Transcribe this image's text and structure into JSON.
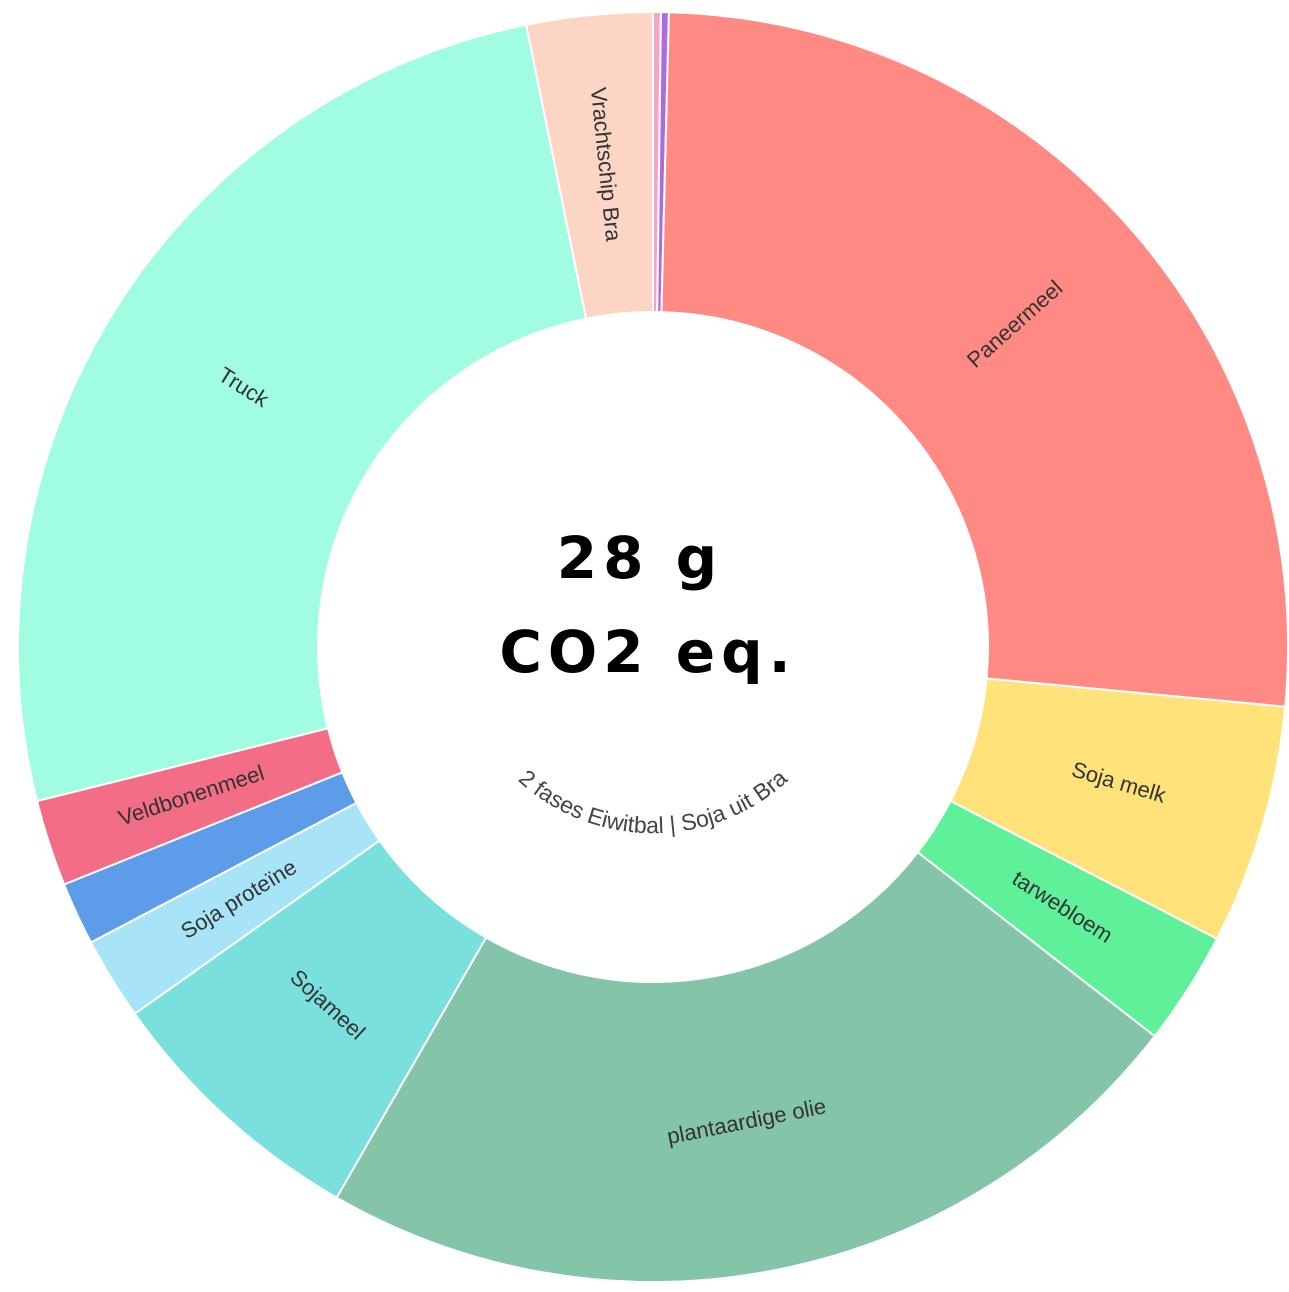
{
  "chart_data": {
    "type": "donut",
    "center_value": "28 g",
    "center_unit": "CO2 eq.",
    "center_caption": "2 fases Eiwitbal | Soja uit Bra",
    "categories": [
      null,
      null,
      "Paneermeel",
      "Soja melk",
      "tarwebloem",
      "plantaardige olie",
      "Sojameel",
      "Soja proteïne",
      null,
      "Veldbonenmeel",
      "Truck",
      "Vrachtschip Bra"
    ],
    "values": [
      0.2,
      0.2,
      26.1,
      6.1,
      2.9,
      22.8,
      6.9,
      2.1,
      1.6,
      2.2,
      25.7,
      3.2
    ],
    "colors": [
      "#f4a6c8",
      "#b06ae0",
      "#fe8a83",
      "#ffe27a",
      "#5ff19a",
      "#84c4a8",
      "#7ae0de",
      "#a8e4f8",
      "#5c9ce8",
      "#f26d85",
      "#a0fde2",
      "#fdd5c4"
    ]
  }
}
